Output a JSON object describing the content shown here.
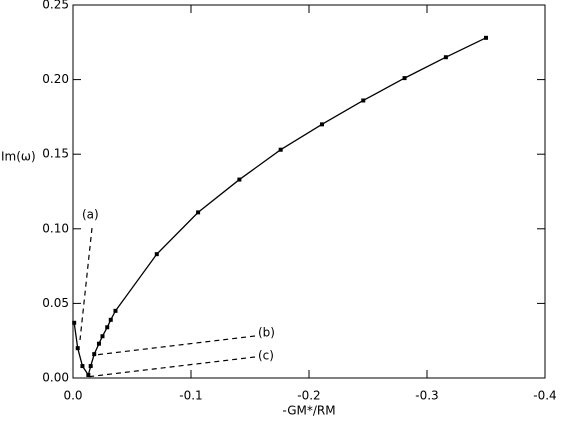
{
  "chart_data": {
    "type": "line",
    "xlabel": "-GM*/RM",
    "ylabel": "Im(ω)",
    "x": [
      -0.001,
      -0.004,
      -0.008,
      -0.013,
      -0.015,
      -0.018,
      -0.022,
      -0.025,
      -0.029,
      -0.032,
      -0.036,
      -0.071,
      -0.106,
      -0.141,
      -0.176,
      -0.211,
      -0.246,
      -0.281,
      -0.316,
      -0.35
    ],
    "values": [
      0.037,
      0.02,
      0.008,
      0.002,
      0.008,
      0.016,
      0.023,
      0.028,
      0.034,
      0.039,
      0.045,
      0.083,
      0.111,
      0.133,
      0.153,
      0.17,
      0.186,
      0.201,
      0.215,
      0.228
    ],
    "color": "#000000",
    "xlim": [
      0,
      -0.4
    ],
    "xticks": [
      {
        "value": 0,
        "label": "0.0"
      },
      -0.1,
      -0.2,
      -0.3,
      -0.4
    ],
    "ylim": [
      0,
      0.25
    ],
    "yticks": [
      {
        "value": 0,
        "label": "0.00"
      },
      {
        "value": 0.05,
        "label": "0.05"
      },
      {
        "value": 0.1,
        "label": "0.10"
      },
      {
        "value": 0.15,
        "label": "0.15"
      },
      {
        "value": 0.2,
        "label": "0.20"
      },
      {
        "value": 0.25,
        "label": "0.25"
      }
    ],
    "annotations": [
      "(a)",
      "(b)",
      "(c)"
    ]
  }
}
